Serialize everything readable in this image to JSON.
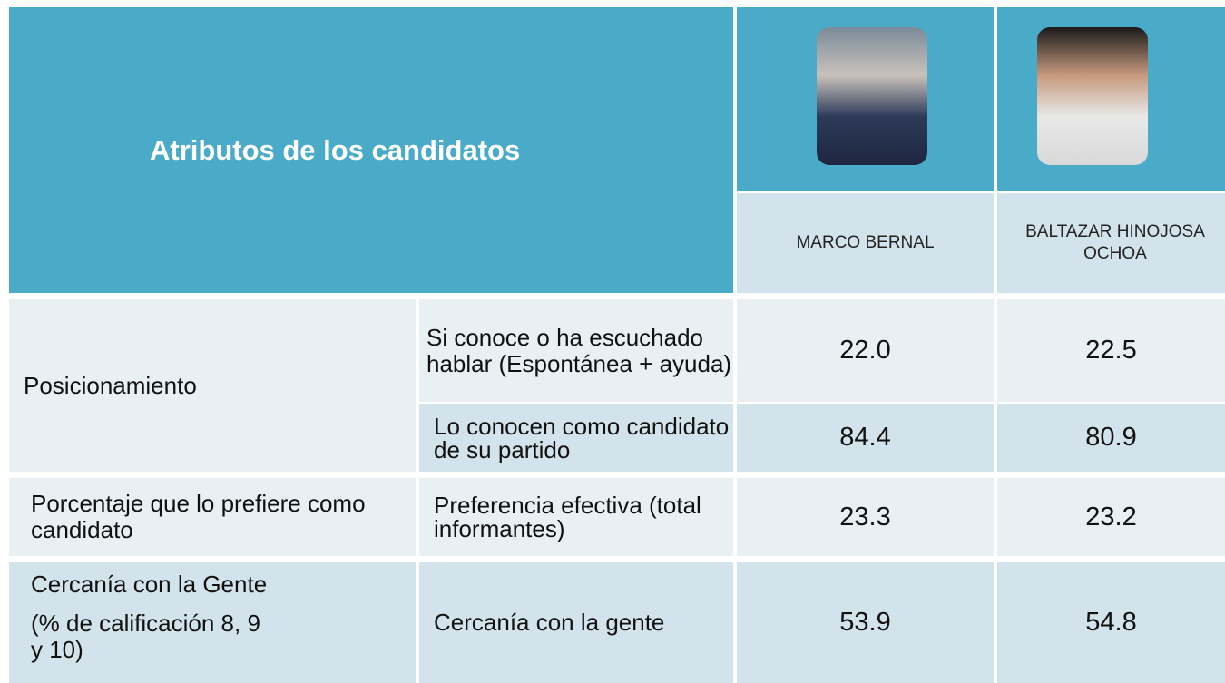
{
  "header": {
    "title": "Atributos de los candidatos",
    "candidates": [
      "MARCO BERNAL",
      "BALTAZAR HINOJOSA OCHOA"
    ]
  },
  "table": {
    "groups": [
      {
        "label": "Posicionamiento",
        "items": [
          {
            "label": "Si conoce o ha escuchado hablar (Espontánea + ayuda)",
            "values": [
              "22.0",
              "22.5"
            ]
          },
          {
            "label": "Lo conocen como candidato de su partido",
            "values": [
              "84.4",
              "80.9"
            ]
          }
        ]
      },
      {
        "label": "Porcentaje que lo prefiere como candidato",
        "items": [
          {
            "label": "Preferencia  efectiva (total informantes)",
            "values": [
              "23.3",
              "23.2"
            ]
          }
        ]
      },
      {
        "label": "Cercanía con la Gente",
        "note": "(% de calificación 8, 9 y 10)",
        "items": [
          {
            "label": "Cercanía con la gente",
            "values": [
              "53.9",
              "54.8"
            ]
          }
        ]
      }
    ]
  }
}
